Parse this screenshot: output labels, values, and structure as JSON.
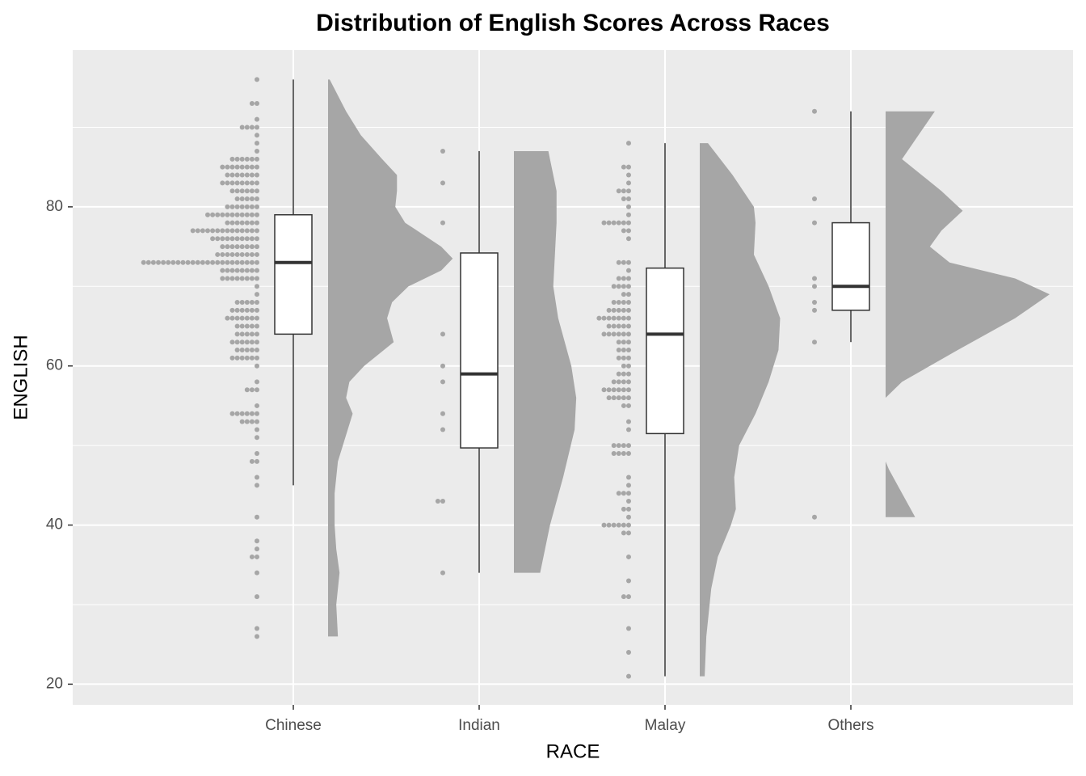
{
  "chart_data": {
    "type": "raincloud",
    "title": "Distribution of English Scores Across Races",
    "x_label": "RACE",
    "y_label": "ENGLISH",
    "categories": [
      "Chinese",
      "Indian",
      "Malay",
      "Others"
    ],
    "ylim": [
      17.4,
      99.7
    ],
    "yticks": [
      20,
      40,
      60,
      80
    ],
    "grid": true,
    "color": "#a6a6a6",
    "boxes": [
      {
        "min": 45,
        "q1": 64,
        "median": 73,
        "q3": 79,
        "max": 96
      },
      {
        "min": 34,
        "q1": 49.7,
        "median": 59,
        "q3": 74.2,
        "max": 87
      },
      {
        "min": 21,
        "q1": 51.5,
        "median": 64,
        "q3": 72.3,
        "max": 88
      },
      {
        "min": 63,
        "q1": 67,
        "median": 70,
        "q3": 78,
        "max": 92
      }
    ],
    "dots": [
      [
        {
          "value": 96,
          "n": 1
        },
        {
          "value": 93,
          "n": 2
        },
        {
          "value": 91,
          "n": 1
        },
        {
          "value": 90,
          "n": 4
        },
        {
          "value": 89,
          "n": 1
        },
        {
          "value": 88,
          "n": 1
        },
        {
          "value": 87,
          "n": 1
        },
        {
          "value": 86,
          "n": 6
        },
        {
          "value": 85,
          "n": 8
        },
        {
          "value": 84,
          "n": 7
        },
        {
          "value": 83,
          "n": 8
        },
        {
          "value": 82,
          "n": 6
        },
        {
          "value": 81,
          "n": 5
        },
        {
          "value": 80,
          "n": 7
        },
        {
          "value": 79,
          "n": 11
        },
        {
          "value": 78,
          "n": 7
        },
        {
          "value": 77,
          "n": 14
        },
        {
          "value": 76,
          "n": 10
        },
        {
          "value": 75,
          "n": 8
        },
        {
          "value": 74,
          "n": 9
        },
        {
          "value": 73,
          "n": 24
        },
        {
          "value": 72,
          "n": 8
        },
        {
          "value": 71,
          "n": 8
        },
        {
          "value": 70,
          "n": 1
        },
        {
          "value": 69,
          "n": 1
        },
        {
          "value": 68,
          "n": 5
        },
        {
          "value": 67,
          "n": 6
        },
        {
          "value": 66,
          "n": 7
        },
        {
          "value": 65,
          "n": 5
        },
        {
          "value": 64,
          "n": 5
        },
        {
          "value": 63,
          "n": 6
        },
        {
          "value": 62,
          "n": 5
        },
        {
          "value": 61,
          "n": 6
        },
        {
          "value": 60,
          "n": 1
        },
        {
          "value": 58,
          "n": 1
        },
        {
          "value": 57,
          "n": 3
        },
        {
          "value": 55,
          "n": 1
        },
        {
          "value": 54,
          "n": 6
        },
        {
          "value": 53,
          "n": 4
        },
        {
          "value": 52,
          "n": 1
        },
        {
          "value": 51,
          "n": 1
        },
        {
          "value": 49,
          "n": 1
        },
        {
          "value": 48,
          "n": 2
        },
        {
          "value": 46,
          "n": 1
        },
        {
          "value": 45,
          "n": 1
        },
        {
          "value": 41,
          "n": 1
        },
        {
          "value": 38,
          "n": 1
        },
        {
          "value": 37,
          "n": 1
        },
        {
          "value": 36,
          "n": 2
        },
        {
          "value": 34,
          "n": 1
        },
        {
          "value": 31,
          "n": 1
        },
        {
          "value": 27,
          "n": 1
        },
        {
          "value": 26,
          "n": 1
        }
      ],
      [
        {
          "value": 87,
          "n": 1
        },
        {
          "value": 83,
          "n": 1
        },
        {
          "value": 78,
          "n": 1
        },
        {
          "value": 64,
          "n": 1
        },
        {
          "value": 60,
          "n": 1
        },
        {
          "value": 58,
          "n": 1
        },
        {
          "value": 54,
          "n": 1
        },
        {
          "value": 52,
          "n": 1
        },
        {
          "value": 43,
          "n": 2
        },
        {
          "value": 34,
          "n": 1
        }
      ],
      [
        {
          "value": 88,
          "n": 1
        },
        {
          "value": 85,
          "n": 2
        },
        {
          "value": 84,
          "n": 1
        },
        {
          "value": 83,
          "n": 1
        },
        {
          "value": 82,
          "n": 3
        },
        {
          "value": 81,
          "n": 2
        },
        {
          "value": 80,
          "n": 1
        },
        {
          "value": 79,
          "n": 1
        },
        {
          "value": 78,
          "n": 6
        },
        {
          "value": 77,
          "n": 2
        },
        {
          "value": 76,
          "n": 1
        },
        {
          "value": 73,
          "n": 3
        },
        {
          "value": 72,
          "n": 1
        },
        {
          "value": 71,
          "n": 3
        },
        {
          "value": 70,
          "n": 4
        },
        {
          "value": 69,
          "n": 2
        },
        {
          "value": 68,
          "n": 4
        },
        {
          "value": 67,
          "n": 5
        },
        {
          "value": 66,
          "n": 7
        },
        {
          "value": 65,
          "n": 5
        },
        {
          "value": 64,
          "n": 6
        },
        {
          "value": 63,
          "n": 3
        },
        {
          "value": 62,
          "n": 3
        },
        {
          "value": 61,
          "n": 3
        },
        {
          "value": 60,
          "n": 2
        },
        {
          "value": 59,
          "n": 3
        },
        {
          "value": 58,
          "n": 4
        },
        {
          "value": 57,
          "n": 6
        },
        {
          "value": 56,
          "n": 5
        },
        {
          "value": 55,
          "n": 2
        },
        {
          "value": 53,
          "n": 1
        },
        {
          "value": 52,
          "n": 1
        },
        {
          "value": 50,
          "n": 4
        },
        {
          "value": 49,
          "n": 4
        },
        {
          "value": 46,
          "n": 1
        },
        {
          "value": 45,
          "n": 1
        },
        {
          "value": 44,
          "n": 3
        },
        {
          "value": 43,
          "n": 1
        },
        {
          "value": 42,
          "n": 2
        },
        {
          "value": 41,
          "n": 1
        },
        {
          "value": 40,
          "n": 6
        },
        {
          "value": 39,
          "n": 2
        },
        {
          "value": 36,
          "n": 1
        },
        {
          "value": 33,
          "n": 1
        },
        {
          "value": 31,
          "n": 2
        },
        {
          "value": 27,
          "n": 1
        },
        {
          "value": 24,
          "n": 1
        },
        {
          "value": 21,
          "n": 1
        }
      ],
      [
        {
          "value": 92,
          "n": 1
        },
        {
          "value": 81,
          "n": 1
        },
        {
          "value": 78,
          "n": 1
        },
        {
          "value": 71,
          "n": 1
        },
        {
          "value": 70,
          "n": 1
        },
        {
          "value": 68,
          "n": 1
        },
        {
          "value": 67,
          "n": 1
        },
        {
          "value": 63,
          "n": 1
        },
        {
          "value": 41,
          "n": 1
        }
      ]
    ],
    "density": [
      {
        "y": [
          26,
          30,
          34,
          37,
          40,
          44,
          48,
          52,
          54,
          56,
          58,
          60,
          63,
          66,
          68,
          70,
          72,
          73.5,
          75,
          78,
          80,
          82,
          84,
          86,
          89,
          92,
          96
        ],
        "width": [
          0.06,
          0.05,
          0.07,
          0.05,
          0.04,
          0.04,
          0.06,
          0.12,
          0.15,
          0.11,
          0.13,
          0.22,
          0.4,
          0.36,
          0.39,
          0.49,
          0.69,
          0.76,
          0.69,
          0.47,
          0.41,
          0.42,
          0.42,
          0.33,
          0.2,
          0.11,
          0.01
        ]
      },
      {
        "y": [
          34,
          40,
          46,
          52,
          56,
          60,
          66,
          70,
          74,
          78,
          82,
          86,
          87
        ],
        "width": [
          0.16,
          0.22,
          0.3,
          0.37,
          0.38,
          0.35,
          0.27,
          0.24,
          0.25,
          0.26,
          0.26,
          0.22,
          0.21
        ]
      },
      {
        "y": [
          21,
          26,
          32,
          36,
          40,
          42,
          46,
          50,
          54,
          58,
          62,
          66,
          70,
          74,
          78,
          80,
          84,
          88
        ],
        "width": [
          0.03,
          0.04,
          0.07,
          0.11,
          0.19,
          0.22,
          0.21,
          0.24,
          0.34,
          0.42,
          0.48,
          0.49,
          0.42,
          0.33,
          0.34,
          0.33,
          0.2,
          0.05
        ]
      },
      {
        "y": [
          41,
          44,
          47,
          48,
          56,
          58,
          62,
          66,
          69,
          71,
          73,
          75,
          77,
          79.5,
          82,
          86,
          89,
          92
        ],
        "width": [
          0.18,
          0.1,
          0.02,
          0,
          0,
          0.1,
          0.44,
          0.79,
          1,
          0.79,
          0.39,
          0.27,
          0.34,
          0.47,
          0.34,
          0.1,
          0.2,
          0.3
        ]
      }
    ]
  }
}
